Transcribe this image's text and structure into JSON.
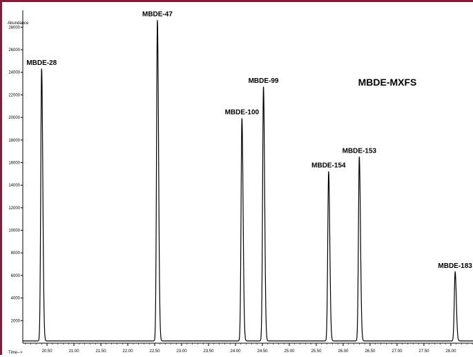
{
  "colors": {
    "frame": "#8b1a3a",
    "trace": "#000000",
    "background": "#ffffff"
  },
  "chart_data": {
    "type": "line",
    "title": "MBDE-MXFS",
    "ylabel": "Abundance",
    "xlabel": "Time-->",
    "xlim": [
      20.05,
      28.45
    ],
    "ylim": [
      0,
      29000
    ],
    "grid": false,
    "legend": "none",
    "x_ticks": [
      20.5,
      21.0,
      21.5,
      22.0,
      22.5,
      23.0,
      23.5,
      24.0,
      24.5,
      25.0,
      25.5,
      26.0,
      26.5,
      27.0,
      27.5,
      28.0
    ],
    "x_tick_labels": [
      "20.50",
      "21.00",
      "21.50",
      "22.00",
      "22.50",
      "23.00",
      "23.50",
      "24.00",
      "24.50",
      "25.00",
      "25.50",
      "26.00",
      "26.50",
      "27.00",
      "27.50",
      "28.00"
    ],
    "y_ticks": [
      2000,
      4000,
      6000,
      8000,
      10000,
      12000,
      14000,
      16000,
      18000,
      20000,
      22000,
      24000,
      26000,
      28000
    ],
    "y_tick_labels": [
      "2000",
      "4000",
      "6000",
      "8000",
      "10000",
      "12000",
      "14000",
      "16000",
      "18000",
      "20000",
      "22000",
      "24000",
      "26000",
      "28000"
    ],
    "baseline": 200,
    "peaks": [
      {
        "label": "MBDE-28",
        "x": 20.4,
        "y": 24300
      },
      {
        "label": "MBDE-47",
        "x": 22.55,
        "y": 28600
      },
      {
        "label": "MBDE-100",
        "x": 24.12,
        "y": 19900
      },
      {
        "label": "MBDE-99",
        "x": 24.52,
        "y": 22700
      },
      {
        "label": "MBDE-154",
        "x": 25.73,
        "y": 15200
      },
      {
        "label": "MBDE-153",
        "x": 26.3,
        "y": 16500
      },
      {
        "label": "MBDE-183",
        "x": 28.08,
        "y": 6300
      }
    ]
  }
}
